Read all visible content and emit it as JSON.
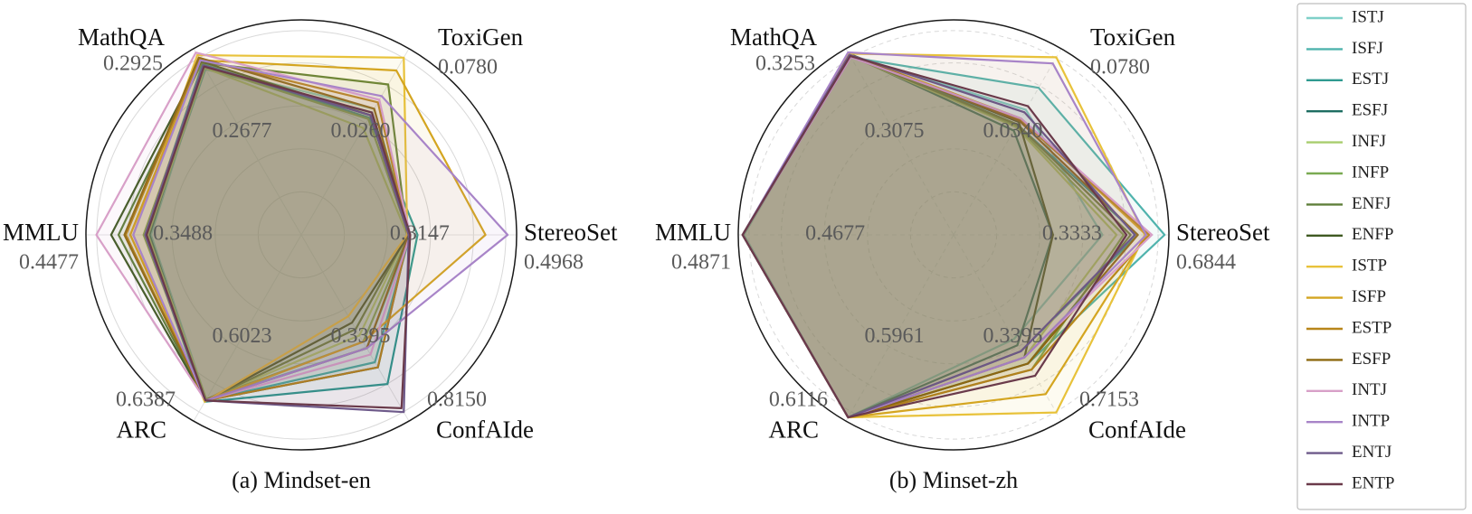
{
  "chart_data": [
    {
      "type": "radar",
      "caption": "(a) Mindset-en",
      "axes": [
        "MathQA",
        "ToxiGen",
        "StereoSet",
        "ConfAIde",
        "ARC",
        "MMLU"
      ],
      "axis_range_labels": {
        "MathQA": {
          "min": "0.2677",
          "max": "0.2925"
        },
        "ToxiGen": {
          "min": "0.0260",
          "max": "0.0780"
        },
        "StereoSet": {
          "min": "0.3147",
          "max": "0.4968"
        },
        "ConfAIde": {
          "min": "0.3395",
          "max": "0.8150"
        },
        "ARC": {
          "min": "0.6023",
          "max": "0.6387"
        },
        "MMLU": {
          "min": "0.3488",
          "max": "0.4477"
        }
      },
      "grid": true,
      "series": [
        {
          "name": "ISTJ",
          "color": "#7fd0c8",
          "values": [
            0.88,
            0.55,
            0.3,
            0.45,
            0.85,
            0.58
          ]
        },
        {
          "name": "ISFJ",
          "color": "#4fb3ad",
          "values": [
            0.86,
            0.52,
            0.3,
            0.56,
            0.86,
            0.6
          ]
        },
        {
          "name": "ESTJ",
          "color": "#2f9a90",
          "values": [
            0.9,
            0.48,
            0.35,
            0.73,
            0.87,
            0.62
          ]
        },
        {
          "name": "ESFJ",
          "color": "#1e6e62",
          "values": [
            0.89,
            0.5,
            0.29,
            0.6,
            0.86,
            0.59
          ]
        },
        {
          "name": "INFJ",
          "color": "#a8cd6e",
          "values": [
            0.87,
            0.4,
            0.28,
            0.35,
            0.85,
            0.6
          ]
        },
        {
          "name": "INFP",
          "color": "#7aaa52",
          "values": [
            0.88,
            0.47,
            0.29,
            0.4,
            0.85,
            0.63
          ]
        },
        {
          "name": "ENFJ",
          "color": "#5f7f3a",
          "values": [
            0.91,
            0.74,
            0.28,
            0.3,
            0.86,
            0.8
          ]
        },
        {
          "name": "ENFP",
          "color": "#3f5a22",
          "values": [
            0.92,
            0.5,
            0.29,
            0.25,
            0.86,
            0.85
          ]
        },
        {
          "name": "ISTP",
          "color": "#e8c23a",
          "values": [
            0.97,
            0.95,
            0.28,
            0.2,
            0.87,
            0.7
          ]
        },
        {
          "name": "ISFP",
          "color": "#d4a520",
          "values": [
            0.93,
            0.85,
            0.81,
            0.4,
            0.86,
            0.72
          ]
        },
        {
          "name": "ESTP",
          "color": "#b8861a",
          "values": [
            0.94,
            0.6,
            0.29,
            0.6,
            0.86,
            0.75
          ]
        },
        {
          "name": "ESFP",
          "color": "#8e6a10",
          "values": [
            0.95,
            0.55,
            0.29,
            0.45,
            0.86,
            0.76
          ]
        },
        {
          "name": "INTJ",
          "color": "#d8a0c8",
          "values": [
            0.99,
            0.62,
            0.3,
            0.5,
            0.86,
            0.95
          ]
        },
        {
          "name": "INTP",
          "color": "#a884c8",
          "values": [
            0.93,
            0.65,
            0.96,
            0.45,
            0.86,
            0.7
          ]
        },
        {
          "name": "ENTJ",
          "color": "#6e5a8a",
          "values": [
            0.89,
            0.5,
            0.29,
            0.95,
            0.86,
            0.62
          ]
        },
        {
          "name": "ENTP",
          "color": "#6a3a4a",
          "values": [
            0.88,
            0.52,
            0.3,
            0.92,
            0.86,
            0.61
          ]
        }
      ]
    },
    {
      "type": "radar",
      "caption": "(b) Minset-zh",
      "axes": [
        "MathQA",
        "ToxiGen",
        "StereoSet",
        "ConfAIde",
        "ARC",
        "MMLU"
      ],
      "axis_range_labels": {
        "MathQA": {
          "min": "0.3075",
          "max": "0.3253"
        },
        "ToxiGen": {
          "min": "0.0340",
          "max": "0.0780"
        },
        "StereoSet": {
          "min": "0.3333",
          "max": "0.6844"
        },
        "ConfAIde": {
          "min": "0.3395",
          "max": "0.7153"
        },
        "ARC": {
          "min": "0.5961",
          "max": "0.6116"
        },
        "MMLU": {
          "min": "0.4677",
          "max": "0.4871"
        }
      },
      "grid": true,
      "series": [
        {
          "name": "ISTJ",
          "color": "#7fd0c8",
          "values": [
            0.97,
            0.52,
            0.55,
            0.35,
            0.99,
            0.98
          ]
        },
        {
          "name": "ISFJ",
          "color": "#4fb3ad",
          "values": [
            0.95,
            0.7,
            0.99,
            0.55,
            0.99,
            0.99
          ]
        },
        {
          "name": "ESTJ",
          "color": "#2f9a90",
          "values": [
            0.98,
            0.4,
            0.8,
            0.45,
            0.99,
            0.99
          ]
        },
        {
          "name": "ESFJ",
          "color": "#1e6e62",
          "values": [
            0.97,
            0.35,
            0.2,
            0.4,
            0.99,
            0.99
          ]
        },
        {
          "name": "INFJ",
          "color": "#a8cd6e",
          "values": [
            0.96,
            0.38,
            0.65,
            0.5,
            0.99,
            0.99
          ]
        },
        {
          "name": "INFP",
          "color": "#7aaa52",
          "values": [
            0.97,
            0.39,
            0.7,
            0.6,
            0.99,
            0.99
          ]
        },
        {
          "name": "ENFJ",
          "color": "#5f7f3a",
          "values": [
            0.96,
            0.4,
            0.75,
            0.55,
            0.99,
            0.99
          ]
        },
        {
          "name": "ENFP",
          "color": "#3f5a22",
          "values": [
            0.98,
            0.42,
            0.2,
            0.5,
            0.99,
            0.99
          ]
        },
        {
          "name": "ISTP",
          "color": "#e8c23a",
          "values": [
            0.98,
            0.95,
            0.85,
            0.95,
            0.99,
            0.99
          ]
        },
        {
          "name": "ISFP",
          "color": "#d4a520",
          "values": [
            0.97,
            0.45,
            0.86,
            0.8,
            0.99,
            0.99
          ]
        },
        {
          "name": "ESTP",
          "color": "#b8861a",
          "values": [
            0.96,
            0.44,
            0.88,
            0.6,
            0.99,
            0.99
          ]
        },
        {
          "name": "ESFP",
          "color": "#8e6a10",
          "values": [
            0.97,
            0.43,
            0.8,
            0.55,
            0.99,
            0.99
          ]
        },
        {
          "name": "INTJ",
          "color": "#d8a0c8",
          "values": [
            0.95,
            0.45,
            0.9,
            0.5,
            0.99,
            0.99
          ]
        },
        {
          "name": "INTP",
          "color": "#a884c8",
          "values": [
            0.99,
            0.9,
            0.86,
            0.5,
            0.99,
            0.99
          ]
        },
        {
          "name": "ENTJ",
          "color": "#6e5a8a",
          "values": [
            0.97,
            0.5,
            0.78,
            0.45,
            0.99,
            0.99
          ]
        },
        {
          "name": "ENTP",
          "color": "#6a3a4a",
          "values": [
            0.96,
            0.55,
            0.72,
            0.65,
            0.99,
            0.99
          ]
        }
      ]
    }
  ],
  "legend": {
    "placement": "right",
    "entries": [
      "ISTJ",
      "ISFJ",
      "ESTJ",
      "ESFJ",
      "INFJ",
      "INFP",
      "ENFJ",
      "ENFP",
      "ISTP",
      "ISFP",
      "ESTP",
      "ESFP",
      "INTJ",
      "INTP",
      "ENTJ",
      "ENTP"
    ]
  }
}
